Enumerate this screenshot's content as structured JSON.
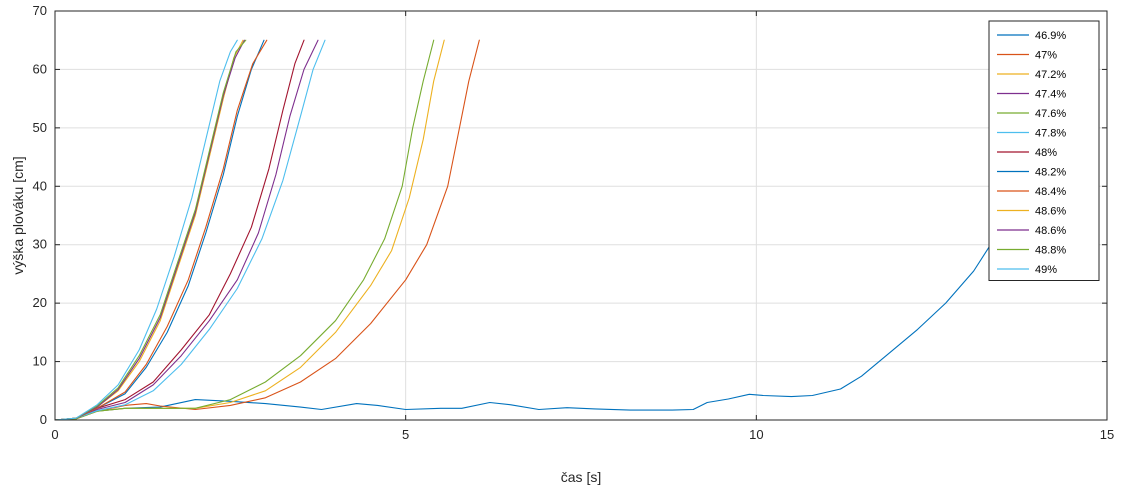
{
  "chart_data": {
    "type": "line",
    "title": "",
    "xlabel": "čas [s]",
    "ylabel": "výška plováku [cm]",
    "xlim": [
      0,
      15
    ],
    "ylim": [
      0,
      70
    ],
    "x_ticks": [
      0,
      5,
      10,
      15
    ],
    "y_ticks": [
      0,
      10,
      20,
      30,
      40,
      50,
      60,
      70
    ],
    "grid": true,
    "legend_position": "top-right",
    "series": [
      {
        "name": "46.9%",
        "color": "#0072BD",
        "points": [
          [
            0,
            0
          ],
          [
            0.3,
            0.2
          ],
          [
            0.6,
            1.5
          ],
          [
            1,
            2
          ],
          [
            1.5,
            2.2
          ],
          [
            2,
            3.5
          ],
          [
            2.5,
            3.2
          ],
          [
            3,
            2.8
          ],
          [
            3.5,
            2.2
          ],
          [
            3.8,
            1.8
          ],
          [
            4.3,
            2.8
          ],
          [
            4.6,
            2.5
          ],
          [
            5,
            1.8
          ],
          [
            5.5,
            2
          ],
          [
            5.8,
            2
          ],
          [
            6.2,
            3
          ],
          [
            6.5,
            2.6
          ],
          [
            6.9,
            1.8
          ],
          [
            7.3,
            2.1
          ],
          [
            7.7,
            1.9
          ],
          [
            8.2,
            1.7
          ],
          [
            8.8,
            1.7
          ],
          [
            9.1,
            1.8
          ],
          [
            9.3,
            3
          ],
          [
            9.6,
            3.6
          ],
          [
            9.9,
            4.4
          ],
          [
            10.1,
            4.2
          ],
          [
            10.5,
            4
          ],
          [
            10.8,
            4.2
          ],
          [
            11.2,
            5.3
          ],
          [
            11.5,
            7.5
          ],
          [
            11.9,
            11.5
          ],
          [
            12.3,
            15.5
          ],
          [
            12.7,
            20
          ],
          [
            13.1,
            25.5
          ],
          [
            13.5,
            33
          ],
          [
            13.65,
            35
          ]
        ]
      },
      {
        "name": "47%",
        "color": "#D95319",
        "points": [
          [
            0,
            0
          ],
          [
            0.3,
            0.2
          ],
          [
            0.6,
            1.5
          ],
          [
            1,
            2.5
          ],
          [
            1.3,
            2.8
          ],
          [
            1.5,
            2.4
          ],
          [
            2,
            1.8
          ],
          [
            2.5,
            2.5
          ],
          [
            3,
            3.8
          ],
          [
            3.5,
            6.5
          ],
          [
            4,
            10.5
          ],
          [
            4.5,
            16.5
          ],
          [
            5,
            24
          ],
          [
            5.3,
            30
          ],
          [
            5.6,
            40
          ],
          [
            5.75,
            49
          ],
          [
            5.9,
            58
          ],
          [
            6.05,
            65
          ]
        ]
      },
      {
        "name": "47.2%",
        "color": "#EDB120",
        "points": [
          [
            0,
            0
          ],
          [
            0.3,
            0.2
          ],
          [
            0.6,
            1.5
          ],
          [
            1,
            2
          ],
          [
            1.5,
            2
          ],
          [
            2,
            2
          ],
          [
            2.5,
            3
          ],
          [
            3,
            5
          ],
          [
            3.5,
            9
          ],
          [
            4,
            15
          ],
          [
            4.5,
            23
          ],
          [
            4.8,
            29
          ],
          [
            5.05,
            38
          ],
          [
            5.25,
            48
          ],
          [
            5.4,
            58
          ],
          [
            5.55,
            65
          ]
        ]
      },
      {
        "name": "47.4%",
        "color": "#7E2F8E",
        "points": [
          [
            0,
            0
          ],
          [
            0.3,
            0.3
          ],
          [
            0.6,
            1.8
          ],
          [
            1,
            3
          ],
          [
            1.4,
            6
          ],
          [
            1.8,
            11
          ],
          [
            2.2,
            17
          ],
          [
            2.6,
            24
          ],
          [
            2.9,
            32
          ],
          [
            3.15,
            42
          ],
          [
            3.35,
            52
          ],
          [
            3.55,
            60
          ],
          [
            3.75,
            65
          ]
        ]
      },
      {
        "name": "47.6%",
        "color": "#77AC30",
        "points": [
          [
            0,
            0
          ],
          [
            0.3,
            0.2
          ],
          [
            0.6,
            1.5
          ],
          [
            1,
            2
          ],
          [
            1.5,
            2
          ],
          [
            2,
            2
          ],
          [
            2.5,
            3.5
          ],
          [
            3,
            6.5
          ],
          [
            3.5,
            11
          ],
          [
            4,
            17
          ],
          [
            4.4,
            24
          ],
          [
            4.7,
            31
          ],
          [
            4.95,
            40
          ],
          [
            5.1,
            50
          ],
          [
            5.25,
            58
          ],
          [
            5.4,
            65
          ]
        ]
      },
      {
        "name": "47.8%",
        "color": "#4DBEEE",
        "points": [
          [
            0,
            0
          ],
          [
            0.3,
            0.3
          ],
          [
            0.6,
            1.6
          ],
          [
            1,
            2.6
          ],
          [
            1.4,
            5
          ],
          [
            1.8,
            9.5
          ],
          [
            2.2,
            15.5
          ],
          [
            2.6,
            22.5
          ],
          [
            2.95,
            31
          ],
          [
            3.25,
            41
          ],
          [
            3.5,
            52
          ],
          [
            3.68,
            60
          ],
          [
            3.85,
            65
          ]
        ]
      },
      {
        "name": "48%",
        "color": "#A2142F",
        "points": [
          [
            0,
            0
          ],
          [
            0.3,
            0.3
          ],
          [
            0.6,
            2
          ],
          [
            1,
            3.5
          ],
          [
            1.4,
            6.5
          ],
          [
            1.8,
            12
          ],
          [
            2.2,
            18
          ],
          [
            2.5,
            25
          ],
          [
            2.8,
            33
          ],
          [
            3.05,
            43
          ],
          [
            3.25,
            53
          ],
          [
            3.42,
            61
          ],
          [
            3.55,
            65
          ]
        ]
      },
      {
        "name": "48.2%",
        "color": "#0072BD",
        "points": [
          [
            0,
            0
          ],
          [
            0.3,
            0.3
          ],
          [
            0.6,
            2
          ],
          [
            1,
            4.5
          ],
          [
            1.3,
            9
          ],
          [
            1.6,
            15
          ],
          [
            1.9,
            23
          ],
          [
            2.15,
            32
          ],
          [
            2.4,
            42
          ],
          [
            2.6,
            52
          ],
          [
            2.8,
            60
          ],
          [
            2.98,
            65
          ]
        ]
      },
      {
        "name": "48.4%",
        "color": "#D95319",
        "points": [
          [
            0,
            0
          ],
          [
            0.3,
            0.3
          ],
          [
            0.6,
            2
          ],
          [
            1,
            4.8
          ],
          [
            1.3,
            9.5
          ],
          [
            1.6,
            16
          ],
          [
            1.9,
            24
          ],
          [
            2.15,
            33
          ],
          [
            2.4,
            43
          ],
          [
            2.6,
            53
          ],
          [
            2.82,
            61
          ],
          [
            3.02,
            65
          ]
        ]
      },
      {
        "name": "48.6%",
        "color": "#EDB120",
        "points": [
          [
            0,
            0
          ],
          [
            0.3,
            0.3
          ],
          [
            0.6,
            2.2
          ],
          [
            0.9,
            5
          ],
          [
            1.2,
            10
          ],
          [
            1.5,
            17
          ],
          [
            1.75,
            26
          ],
          [
            2,
            35
          ],
          [
            2.2,
            45
          ],
          [
            2.4,
            55
          ],
          [
            2.55,
            62
          ],
          [
            2.68,
            65
          ]
        ]
      },
      {
        "name": "48.6%",
        "color": "#7E2F8E",
        "points": [
          [
            0,
            0
          ],
          [
            0.3,
            0.3
          ],
          [
            0.6,
            2.2
          ],
          [
            0.9,
            5.2
          ],
          [
            1.2,
            10.5
          ],
          [
            1.5,
            17.5
          ],
          [
            1.75,
            26.5
          ],
          [
            2,
            35.5
          ],
          [
            2.2,
            45.5
          ],
          [
            2.4,
            55.5
          ],
          [
            2.57,
            62
          ],
          [
            2.7,
            65
          ]
        ]
      },
      {
        "name": "48.8%",
        "color": "#77AC30",
        "points": [
          [
            0,
            0
          ],
          [
            0.3,
            0.3
          ],
          [
            0.6,
            2.4
          ],
          [
            0.9,
            5.5
          ],
          [
            1.2,
            11
          ],
          [
            1.5,
            18
          ],
          [
            1.75,
            27
          ],
          [
            2,
            36
          ],
          [
            2.2,
            46
          ],
          [
            2.4,
            56
          ],
          [
            2.58,
            63
          ],
          [
            2.72,
            65
          ]
        ]
      },
      {
        "name": "49%",
        "color": "#4DBEEE",
        "points": [
          [
            0,
            0
          ],
          [
            0.3,
            0.3
          ],
          [
            0.6,
            2.6
          ],
          [
            0.9,
            6
          ],
          [
            1.2,
            12
          ],
          [
            1.45,
            19
          ],
          [
            1.7,
            28
          ],
          [
            1.95,
            38
          ],
          [
            2.15,
            48
          ],
          [
            2.35,
            58
          ],
          [
            2.5,
            63
          ],
          [
            2.6,
            65
          ]
        ]
      }
    ]
  }
}
